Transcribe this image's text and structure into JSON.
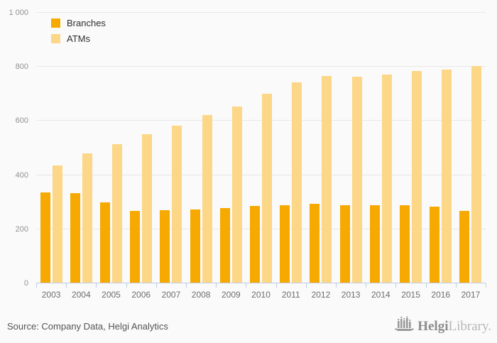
{
  "chart_data": {
    "type": "bar",
    "title": "",
    "xlabel": "",
    "ylabel": "",
    "categories": [
      "2003",
      "2004",
      "2005",
      "2006",
      "2007",
      "2008",
      "2009",
      "2010",
      "2011",
      "2012",
      "2013",
      "2014",
      "2015",
      "2016",
      "2017"
    ],
    "series": [
      {
        "name": "Branches",
        "color": "#F6A900",
        "values": [
          337,
          334,
          299,
          267,
          271,
          274,
          277,
          287,
          288,
          294,
          288,
          288,
          288,
          283,
          267
        ]
      },
      {
        "name": "ATMs",
        "color": "#FBD787",
        "values": [
          435,
          480,
          515,
          552,
          583,
          622,
          653,
          700,
          742,
          766,
          763,
          772,
          784,
          791,
          803
        ]
      }
    ],
    "ylim": [
      0,
      1000
    ],
    "yticks": [
      0,
      200,
      400,
      600,
      800,
      1000
    ],
    "ytick_labels": [
      "0",
      "200",
      "400",
      "600",
      "800",
      "1 000"
    ],
    "grid": true,
    "legend_position": "top-left"
  },
  "colors": {
    "background": "#fafafa",
    "gridline": "#e8e8e8",
    "axis_line": "#bfcde2",
    "tick_label": "#6e6e6e",
    "branches": "#F6A900",
    "atms": "#FBD787"
  },
  "footer": {
    "source": "Source: Company Data, Helgi Analytics",
    "logo": {
      "brand_bold": "Helgi",
      "brand_light": "Library."
    }
  }
}
